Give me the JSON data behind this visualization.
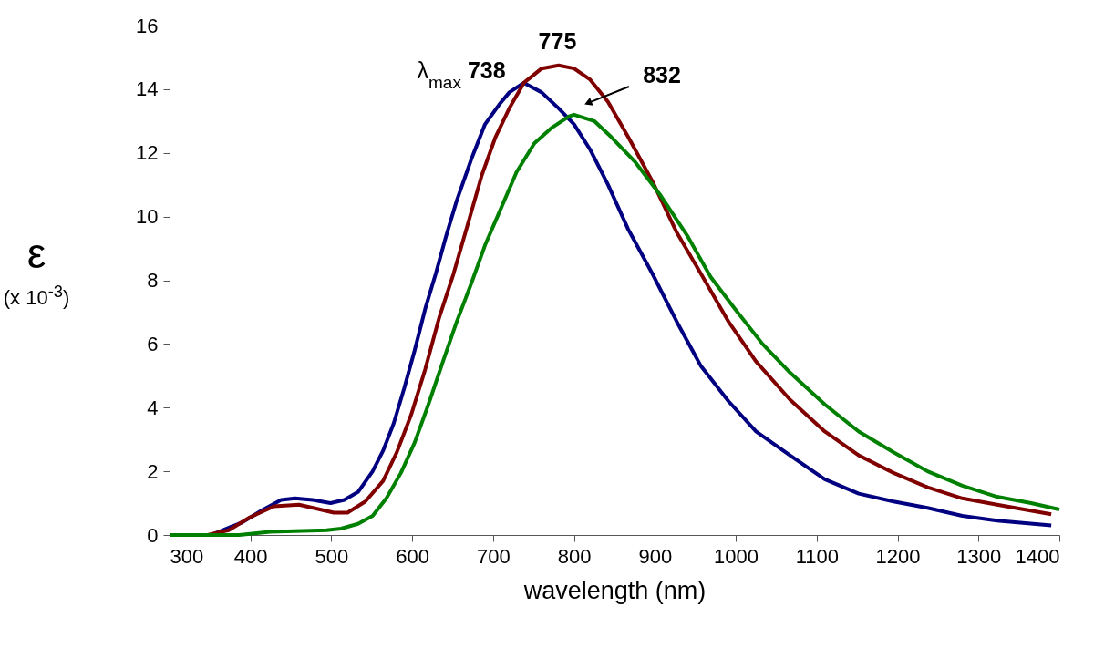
{
  "chart_data": {
    "type": "line",
    "xlabel": "wavelength (nm)",
    "ylabel": "ε\n(x 10$^{-3}$)",
    "xlim": [
      300,
      1400
    ],
    "xticks": [
      300,
      400,
      500,
      600,
      700,
      800,
      900,
      1000,
      1100,
      1200,
      1300,
      1400
    ],
    "ylim": [
      0,
      16
    ],
    "yticks": [
      0,
      2,
      4,
      6,
      8,
      10,
      12,
      14,
      16
    ],
    "grid": false,
    "legend": false,
    "line_style": "solid",
    "marker": "none",
    "series": [
      {
        "color": "#000080",
        "x": [
          300,
          351,
          390,
          416,
          438,
          455,
          477,
          499,
          516,
          533,
          551,
          564,
          577,
          590,
          603,
          616,
          629,
          642,
          655,
          673,
          690,
          707,
          720,
          738,
          760,
          781,
          800,
          820,
          842,
          867,
          897,
          927,
          957,
          991,
          1025,
          1067,
          1110,
          1152,
          1195,
          1237,
          1280,
          1323,
          1390
        ],
        "values": [
          0,
          0,
          0.4,
          0.8,
          1.1,
          1.15,
          1.1,
          1.0,
          1.1,
          1.35,
          2.0,
          2.65,
          3.5,
          4.6,
          5.8,
          7.1,
          8.2,
          9.4,
          10.5,
          11.8,
          12.9,
          13.5,
          13.9,
          14.2,
          13.9,
          13.4,
          12.9,
          12.1,
          11.0,
          9.6,
          8.2,
          6.7,
          5.3,
          4.2,
          3.25,
          2.5,
          1.75,
          1.3,
          1.05,
          0.85,
          0.6,
          0.45,
          0.3
        ]
      },
      {
        "color": "#800000",
        "x": [
          300,
          347,
          373,
          399,
          429,
          460,
          486,
          503,
          520,
          542,
          564,
          581,
          599,
          616,
          633,
          651,
          668,
          686,
          703,
          720,
          738,
          760,
          781,
          800,
          820,
          842,
          867,
          897,
          927,
          957,
          991,
          1025,
          1067,
          1110,
          1152,
          1195,
          1237,
          1280,
          1323,
          1390
        ],
        "values": [
          0,
          0,
          0.15,
          0.55,
          0.9,
          0.95,
          0.8,
          0.7,
          0.7,
          1.05,
          1.7,
          2.6,
          3.8,
          5.2,
          6.8,
          8.2,
          9.7,
          11.3,
          12.5,
          13.4,
          14.2,
          14.65,
          14.75,
          14.65,
          14.3,
          13.6,
          12.5,
          11.1,
          9.5,
          8.2,
          6.7,
          5.45,
          4.25,
          3.25,
          2.5,
          1.95,
          1.5,
          1.15,
          0.95,
          0.65
        ]
      },
      {
        "color": "#008000",
        "x": [
          300,
          386,
          424,
          494,
          512,
          533,
          551,
          568,
          586,
          603,
          620,
          638,
          655,
          673,
          690,
          707,
          729,
          751,
          773,
          794,
          800,
          825,
          846,
          876,
          906,
          940,
          969,
          999,
          1033,
          1067,
          1110,
          1152,
          1195,
          1237,
          1280,
          1323,
          1365,
          1400
        ],
        "values": [
          0,
          0,
          0.1,
          0.15,
          0.2,
          0.35,
          0.6,
          1.15,
          1.95,
          2.9,
          4.1,
          5.45,
          6.7,
          7.9,
          9.1,
          10.1,
          11.4,
          12.3,
          12.8,
          13.15,
          13.2,
          13.0,
          12.5,
          11.7,
          10.7,
          9.4,
          8.1,
          7.1,
          6.0,
          5.1,
          4.1,
          3.25,
          2.6,
          2.0,
          1.55,
          1.2,
          1.0,
          0.8
        ]
      }
    ],
    "annotations": [
      {
        "text": "λ$_{max}$ 738",
        "x": 738,
        "y": 14.2
      },
      {
        "text": "775",
        "x": 775,
        "y": 14.75
      },
      "832"
    ]
  }
}
